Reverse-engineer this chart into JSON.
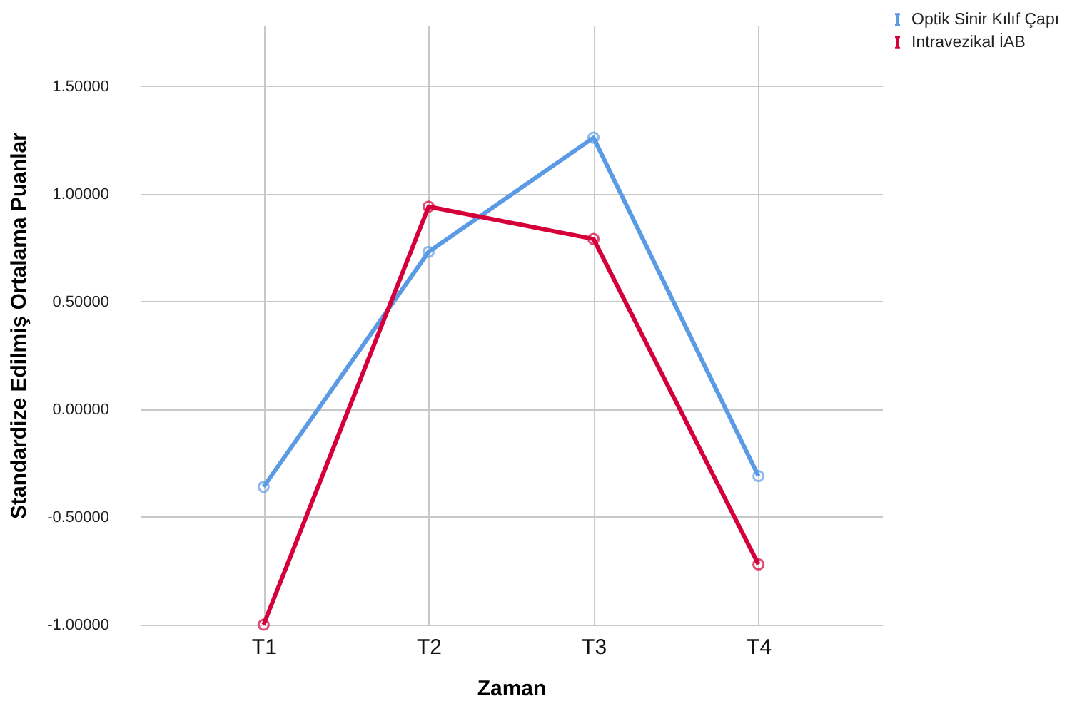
{
  "chart_data": {
    "type": "line",
    "xlabel": "Zaman",
    "ylabel": "Standardize Edilmiş Ortalama Puanlar",
    "categories": [
      "T1",
      "T2",
      "T3",
      "T4"
    ],
    "series": [
      {
        "name": "Optik Sinir Kılıf Çapı",
        "color": "#5b9be6",
        "values": [
          -0.36,
          0.73,
          1.26,
          -0.31
        ]
      },
      {
        "name": "Intravezikal İAB",
        "color": "#d5003a",
        "values": [
          -1.0,
          0.94,
          0.79,
          -0.72
        ]
      }
    ],
    "ylim": [
      -1.0,
      1.78
    ],
    "yticks": [
      {
        "value": -1.0,
        "label": "-1.00000"
      },
      {
        "value": -0.5,
        "label": "-0.50000"
      },
      {
        "value": 0,
        "label": "0.00000"
      },
      {
        "value": 0.5,
        "label": "0.50000"
      },
      {
        "value": 1.0,
        "label": "1.00000"
      },
      {
        "value": 1.5,
        "label": "1.50000"
      }
    ],
    "grid": true,
    "legend": "top right",
    "marker": "circle",
    "line_style": "solid"
  }
}
